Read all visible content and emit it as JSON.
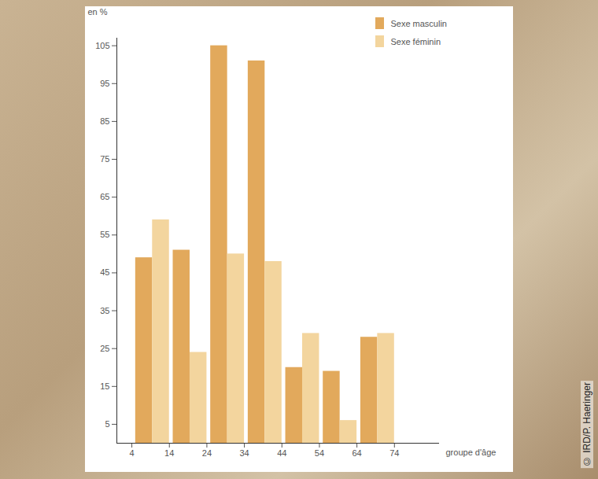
{
  "chart_data": {
    "type": "bar",
    "y_label": "en %",
    "x_label": "groupe d'âge",
    "bins": [
      4,
      14,
      24,
      34,
      44,
      54,
      64,
      74
    ],
    "series": [
      {
        "name": "Sexe masculin",
        "color": "#e2a95c",
        "values": [
          49,
          51,
          105,
          101,
          20,
          19,
          28
        ]
      },
      {
        "name": "Sexe féminin",
        "color": "#f3d59e",
        "values": [
          59,
          24,
          50,
          48,
          29,
          6,
          29
        ]
      }
    ],
    "xlim": [
      0,
      86
    ],
    "xticks": [
      4,
      14,
      24,
      34,
      44,
      54,
      64,
      74
    ],
    "ylim": [
      0,
      107
    ],
    "yticks": [
      5,
      15,
      25,
      35,
      45,
      55,
      65,
      75,
      85,
      95,
      105
    ],
    "grid": false,
    "legend": "top-right",
    "annotations": [
      "© IRD/P. Haeringer"
    ]
  }
}
